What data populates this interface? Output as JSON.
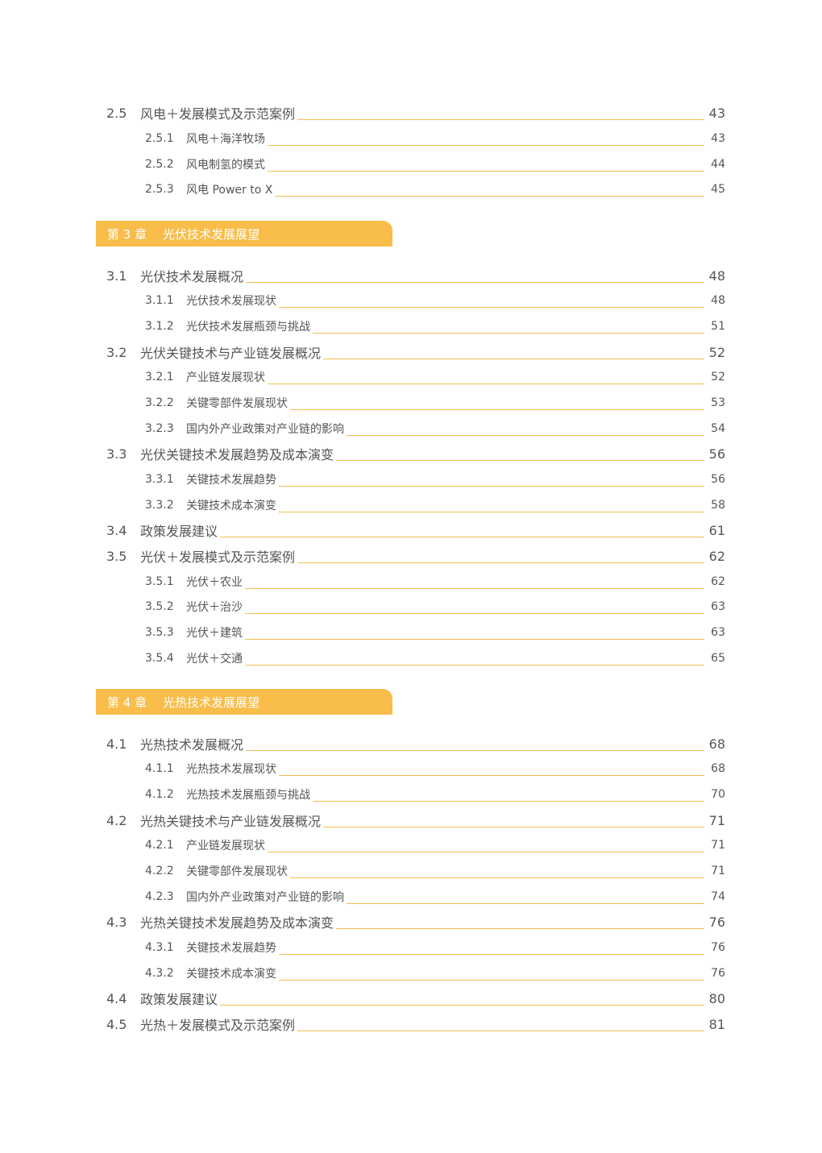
{
  "blocks": [
    {
      "kind": "sec",
      "num": "2.5",
      "title": "风电＋发展模式及示范案例",
      "page": "43"
    },
    {
      "kind": "sub",
      "num": "2.5.1",
      "title": "风电＋海洋牧场",
      "page": "43"
    },
    {
      "kind": "sub",
      "num": "2.5.2",
      "title": "风电制氢的模式",
      "page": "44"
    },
    {
      "kind": "sub",
      "num": "2.5.3",
      "title": "风电 Power to X",
      "page": "45"
    },
    {
      "kind": "chapter",
      "label": "第 3 章",
      "title": "光伏技术发展展望"
    },
    {
      "kind": "sec",
      "num": "3.1",
      "title": "光伏技术发展概况",
      "page": "48"
    },
    {
      "kind": "sub",
      "num": "3.1.1",
      "title": "光伏技术发展现状",
      "page": "48"
    },
    {
      "kind": "sub",
      "num": "3.1.2",
      "title": "光伏技术发展瓶颈与挑战",
      "page": "51"
    },
    {
      "kind": "sec",
      "num": "3.2",
      "title": "光伏关键技术与产业链发展概况",
      "page": "52"
    },
    {
      "kind": "sub",
      "num": "3.2.1",
      "title": "产业链发展现状",
      "page": "52"
    },
    {
      "kind": "sub",
      "num": "3.2.2",
      "title": "关键零部件发展现状",
      "page": "53"
    },
    {
      "kind": "sub",
      "num": "3.2.3",
      "title": "国内外产业政策对产业链的影响",
      "page": "54"
    },
    {
      "kind": "sec",
      "num": "3.3",
      "title": "光伏关键技术发展趋势及成本演变",
      "page": "56"
    },
    {
      "kind": "sub",
      "num": "3.3.1",
      "title": "关键技术发展趋势",
      "page": "56"
    },
    {
      "kind": "sub",
      "num": "3.3.2",
      "title": "关键技术成本演变",
      "page": "58"
    },
    {
      "kind": "sec",
      "num": "3.4",
      "title": "政策发展建议",
      "page": "61"
    },
    {
      "kind": "sec",
      "num": "3.5",
      "title": "光伏＋发展模式及示范案例",
      "page": "62"
    },
    {
      "kind": "sub",
      "num": "3.5.1",
      "title": "光伏＋农业",
      "page": "62"
    },
    {
      "kind": "sub",
      "num": "3.5.2",
      "title": "光伏＋治沙",
      "page": "63"
    },
    {
      "kind": "sub",
      "num": "3.5.3",
      "title": "光伏＋建筑",
      "page": "63"
    },
    {
      "kind": "sub",
      "num": "3.5.4",
      "title": "光伏＋交通",
      "page": "65"
    },
    {
      "kind": "chapter",
      "label": "第 4 章",
      "title": "光热技术发展展望"
    },
    {
      "kind": "sec",
      "num": "4.1",
      "title": "光热技术发展概况",
      "page": "68"
    },
    {
      "kind": "sub",
      "num": "4.1.1",
      "title": "光热技术发展现状",
      "page": "68"
    },
    {
      "kind": "sub",
      "num": "4.1.2",
      "title": "光热技术发展瓶颈与挑战",
      "page": "70"
    },
    {
      "kind": "sec",
      "num": "4.2",
      "title": "光热关键技术与产业链发展概况",
      "page": "71"
    },
    {
      "kind": "sub",
      "num": "4.2.1",
      "title": "产业链发展现状",
      "page": "71"
    },
    {
      "kind": "sub",
      "num": "4.2.2",
      "title": "关键零部件发展现状",
      "page": "71"
    },
    {
      "kind": "sub",
      "num": "4.2.3",
      "title": "国内外产业政策对产业链的影响",
      "page": "74"
    },
    {
      "kind": "sec",
      "num": "4.3",
      "title": "光热关键技术发展趋势及成本演变",
      "page": "76"
    },
    {
      "kind": "sub",
      "num": "4.3.1",
      "title": "关键技术发展趋势",
      "page": "76"
    },
    {
      "kind": "sub",
      "num": "4.3.2",
      "title": "关键技术成本演变",
      "page": "76"
    },
    {
      "kind": "sec",
      "num": "4.4",
      "title": "政策发展建议",
      "page": "80"
    },
    {
      "kind": "sec",
      "num": "4.5",
      "title": "光热＋发展模式及示范案例",
      "page": "81"
    }
  ],
  "colors": {
    "accent": "#f8bd4a",
    "leader": "#f2bf4e",
    "text": "#555555"
  }
}
